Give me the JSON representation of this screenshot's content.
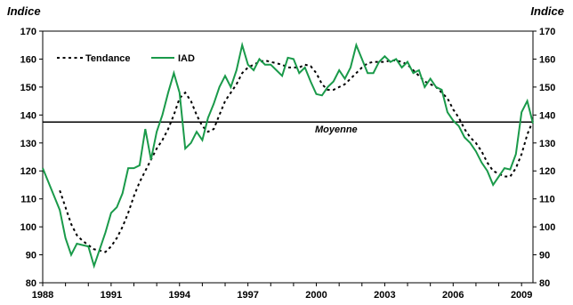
{
  "chart_data": {
    "type": "line",
    "ylabel_left": "Indice",
    "ylabel_right": "Indice",
    "ylim": [
      80,
      170
    ],
    "yticks": [
      80,
      90,
      100,
      110,
      120,
      130,
      140,
      150,
      160,
      170
    ],
    "xlim": [
      1988,
      2009.5
    ],
    "xticks": [
      1988,
      1991,
      1994,
      1997,
      2000,
      2003,
      2006,
      2009
    ],
    "legend": {
      "placement": "top-left"
    },
    "reference_line": {
      "label": "Moyenne",
      "value": 137.5
    },
    "series": [
      {
        "name": "Tendance",
        "style": "dotted",
        "color": "#000000",
        "points": [
          [
            1988.75,
            113
          ],
          [
            1989.0,
            107
          ],
          [
            1989.25,
            101
          ],
          [
            1989.5,
            97
          ],
          [
            1989.75,
            95
          ],
          [
            1990.0,
            93.5
          ],
          [
            1990.25,
            92
          ],
          [
            1990.5,
            91.5
          ],
          [
            1990.75,
            91
          ],
          [
            1991.0,
            93
          ],
          [
            1991.25,
            96
          ],
          [
            1991.5,
            100
          ],
          [
            1991.75,
            105
          ],
          [
            1992.0,
            111
          ],
          [
            1992.25,
            116
          ],
          [
            1992.5,
            120
          ],
          [
            1992.75,
            124
          ],
          [
            1993.0,
            128
          ],
          [
            1993.25,
            131
          ],
          [
            1993.5,
            135
          ],
          [
            1993.75,
            140
          ],
          [
            1994.0,
            146
          ],
          [
            1994.25,
            148
          ],
          [
            1994.5,
            145
          ],
          [
            1994.75,
            140
          ],
          [
            1995.0,
            136
          ],
          [
            1995.25,
            134
          ],
          [
            1995.5,
            135
          ],
          [
            1995.75,
            140
          ],
          [
            1996.0,
            145
          ],
          [
            1996.25,
            148
          ],
          [
            1996.5,
            151
          ],
          [
            1996.75,
            155
          ],
          [
            1997.0,
            157
          ],
          [
            1997.25,
            158
          ],
          [
            1997.5,
            159
          ],
          [
            1997.75,
            159.5
          ],
          [
            1998.0,
            159
          ],
          [
            1998.25,
            158.5
          ],
          [
            1998.5,
            158
          ],
          [
            1998.75,
            157
          ],
          [
            1999.0,
            157
          ],
          [
            1999.25,
            157
          ],
          [
            1999.5,
            158
          ],
          [
            1999.75,
            157.5
          ],
          [
            2000.0,
            155
          ],
          [
            2000.25,
            151
          ],
          [
            2000.5,
            149
          ],
          [
            2000.75,
            149
          ],
          [
            2001.0,
            150
          ],
          [
            2001.25,
            151
          ],
          [
            2001.5,
            153
          ],
          [
            2001.75,
            155
          ],
          [
            2002.0,
            157
          ],
          [
            2002.25,
            158.5
          ],
          [
            2002.5,
            159
          ],
          [
            2002.75,
            159
          ],
          [
            2003.0,
            159
          ],
          [
            2003.25,
            159.5
          ],
          [
            2003.5,
            159.5
          ],
          [
            2003.75,
            159
          ],
          [
            2004.0,
            158
          ],
          [
            2004.25,
            156
          ],
          [
            2004.5,
            154
          ],
          [
            2004.75,
            152
          ],
          [
            2005.0,
            151
          ],
          [
            2005.25,
            150
          ],
          [
            2005.5,
            148
          ],
          [
            2005.75,
            146
          ],
          [
            2006.0,
            142
          ],
          [
            2006.25,
            139
          ],
          [
            2006.5,
            135
          ],
          [
            2006.75,
            132
          ],
          [
            2007.0,
            130
          ],
          [
            2007.25,
            127
          ],
          [
            2007.5,
            123
          ],
          [
            2007.75,
            120
          ],
          [
            2008.0,
            119
          ],
          [
            2008.25,
            118
          ],
          [
            2008.5,
            118
          ],
          [
            2008.75,
            121
          ],
          [
            2009.0,
            126
          ],
          [
            2009.25,
            133
          ],
          [
            2009.5,
            138
          ]
        ]
      },
      {
        "name": "IAD",
        "style": "solid",
        "color": "#1a9a4a",
        "points": [
          [
            1988.0,
            121
          ],
          [
            1988.25,
            116
          ],
          [
            1988.5,
            111
          ],
          [
            1988.75,
            106
          ],
          [
            1989.0,
            96
          ],
          [
            1989.25,
            90
          ],
          [
            1989.5,
            94
          ],
          [
            1989.75,
            93.5
          ],
          [
            1990.0,
            93
          ],
          [
            1990.25,
            86
          ],
          [
            1990.5,
            92
          ],
          [
            1990.75,
            98
          ],
          [
            1991.0,
            105
          ],
          [
            1991.25,
            107
          ],
          [
            1991.5,
            112
          ],
          [
            1991.75,
            121
          ],
          [
            1992.0,
            121
          ],
          [
            1992.25,
            122
          ],
          [
            1992.5,
            135
          ],
          [
            1992.75,
            124
          ],
          [
            1993.0,
            134
          ],
          [
            1993.25,
            140
          ],
          [
            1993.5,
            148
          ],
          [
            1993.75,
            155
          ],
          [
            1994.0,
            148
          ],
          [
            1994.25,
            128
          ],
          [
            1994.5,
            130
          ],
          [
            1994.75,
            134
          ],
          [
            1995.0,
            131
          ],
          [
            1995.25,
            139
          ],
          [
            1995.5,
            144
          ],
          [
            1995.75,
            150
          ],
          [
            1996.0,
            154
          ],
          [
            1996.25,
            150
          ],
          [
            1996.5,
            156
          ],
          [
            1996.75,
            165
          ],
          [
            1997.0,
            158
          ],
          [
            1997.25,
            156
          ],
          [
            1997.5,
            160
          ],
          [
            1997.75,
            158
          ],
          [
            1998.0,
            158
          ],
          [
            1998.25,
            156
          ],
          [
            1998.5,
            154
          ],
          [
            1998.75,
            160.5
          ],
          [
            1999.0,
            160
          ],
          [
            1999.25,
            155
          ],
          [
            1999.5,
            157
          ],
          [
            1999.75,
            152
          ],
          [
            2000.0,
            147.5
          ],
          [
            2000.25,
            147
          ],
          [
            2000.5,
            150
          ],
          [
            2000.75,
            152
          ],
          [
            2001.0,
            156
          ],
          [
            2001.25,
            153
          ],
          [
            2001.5,
            157
          ],
          [
            2001.75,
            165
          ],
          [
            2002.0,
            160
          ],
          [
            2002.25,
            155
          ],
          [
            2002.5,
            155
          ],
          [
            2002.75,
            159
          ],
          [
            2003.0,
            161
          ],
          [
            2003.25,
            159
          ],
          [
            2003.5,
            160
          ],
          [
            2003.75,
            157
          ],
          [
            2004.0,
            159
          ],
          [
            2004.25,
            155
          ],
          [
            2004.5,
            156
          ],
          [
            2004.75,
            150
          ],
          [
            2005.0,
            153
          ],
          [
            2005.25,
            150
          ],
          [
            2005.5,
            149
          ],
          [
            2005.75,
            141
          ],
          [
            2006.0,
            138
          ],
          [
            2006.25,
            136
          ],
          [
            2006.5,
            132
          ],
          [
            2006.75,
            130
          ],
          [
            2007.0,
            127
          ],
          [
            2007.25,
            123
          ],
          [
            2007.5,
            120
          ],
          [
            2007.75,
            115
          ],
          [
            2008.0,
            118
          ],
          [
            2008.25,
            121
          ],
          [
            2008.5,
            120.5
          ],
          [
            2008.75,
            126
          ],
          [
            2009.0,
            141
          ],
          [
            2009.25,
            145
          ],
          [
            2009.5,
            137
          ]
        ]
      }
    ]
  }
}
